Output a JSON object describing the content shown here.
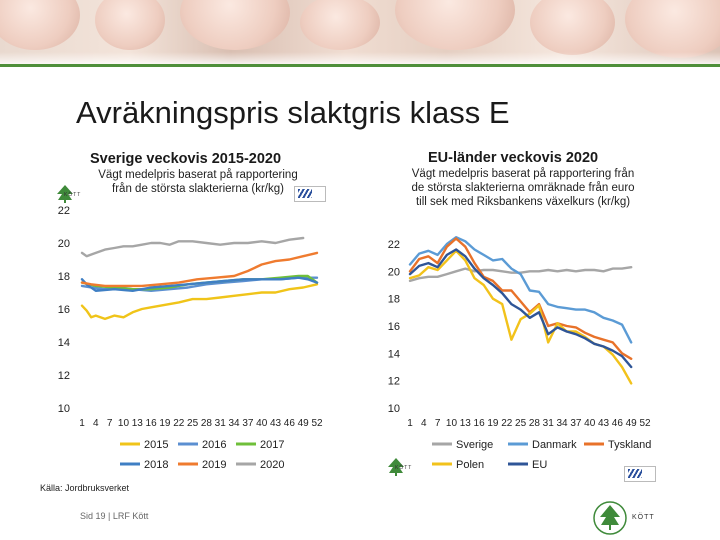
{
  "slide": {
    "title": "Avräkningspris slaktgris klass E",
    "source": "Källa: Jordbruksverket",
    "footer": "Sid 19 | LRF Kött",
    "logo_text": "KÖTT"
  },
  "colors": {
    "accent_green": "#4f8f3a",
    "2015": "#f0c419",
    "2016": "#5b8fd1",
    "2017": "#6fbf3a",
    "2018": "#3f7fc4",
    "2019": "#ef7b2f",
    "2020": "#a6a6a6",
    "Sverige": "#a6a6a6",
    "Danmark": "#5b9bd5",
    "Tyskland": "#e8722a",
    "Polen": "#f2c21b",
    "EU": "#2f5597"
  },
  "chart_data": [
    {
      "type": "line",
      "title": "Sverige veckovis 2015-2020",
      "subtitle": "Vägt medelpris baserat på rapportering från de största slakterierna (kr/kg)",
      "ylim": [
        10,
        22
      ],
      "yticks": [
        10,
        12,
        14,
        16,
        18,
        20,
        22
      ],
      "xticks": [
        1,
        4,
        7,
        10,
        13,
        16,
        19,
        22,
        25,
        28,
        31,
        34,
        37,
        40,
        43,
        46,
        49,
        52
      ],
      "grid": false,
      "legend_position": "bottom",
      "legend": [
        "2015",
        "2016",
        "2017",
        "2018",
        "2019",
        "2020"
      ],
      "series": [
        {
          "name": "2015",
          "x": [
            1,
            2,
            3,
            4,
            6,
            8,
            10,
            12,
            14,
            16,
            18,
            20,
            22,
            25,
            28,
            31,
            34,
            37,
            40,
            43,
            46,
            49,
            52
          ],
          "y": [
            16.2,
            15.9,
            15.5,
            15.6,
            15.4,
            15.6,
            15.5,
            15.8,
            16.0,
            16.1,
            16.2,
            16.3,
            16.4,
            16.6,
            16.6,
            16.7,
            16.8,
            16.9,
            17.0,
            17.0,
            17.2,
            17.3,
            17.5
          ]
        },
        {
          "name": "2016",
          "x": [
            1,
            3,
            6,
            9,
            12,
            16,
            20,
            24,
            28,
            32,
            36,
            40,
            44,
            48,
            52
          ],
          "y": [
            17.4,
            17.3,
            17.2,
            17.3,
            17.2,
            17.1,
            17.2,
            17.3,
            17.5,
            17.6,
            17.7,
            17.8,
            17.8,
            17.9,
            17.9
          ]
        },
        {
          "name": "2017",
          "x": [
            1,
            4,
            8,
            12,
            16,
            20,
            24,
            28,
            32,
            36,
            40,
            44,
            48,
            50,
            52
          ],
          "y": [
            17.6,
            17.4,
            17.3,
            17.2,
            17.2,
            17.3,
            17.5,
            17.6,
            17.7,
            17.8,
            17.8,
            17.9,
            18.0,
            18.0,
            17.6
          ]
        },
        {
          "name": "2018",
          "x": [
            1,
            2,
            4,
            8,
            12,
            16,
            20,
            24,
            28,
            32,
            36,
            40,
            44,
            48,
            50,
            52
          ],
          "y": [
            17.8,
            17.5,
            17.1,
            17.2,
            17.1,
            17.3,
            17.4,
            17.5,
            17.6,
            17.7,
            17.8,
            17.8,
            17.8,
            17.9,
            17.8,
            17.6
          ]
        },
        {
          "name": "2019",
          "x": [
            1,
            3,
            6,
            10,
            14,
            18,
            22,
            26,
            30,
            34,
            37,
            40,
            43,
            46,
            49,
            52
          ],
          "y": [
            17.6,
            17.5,
            17.4,
            17.4,
            17.4,
            17.5,
            17.6,
            17.8,
            17.9,
            18.0,
            18.3,
            18.7,
            18.9,
            19.0,
            19.2,
            19.4
          ]
        },
        {
          "name": "2020",
          "x": [
            1,
            2,
            4,
            6,
            8,
            10,
            12,
            14,
            16,
            18,
            20,
            22,
            25,
            28,
            31,
            34,
            37,
            40,
            43,
            46,
            49
          ],
          "y": [
            19.4,
            19.2,
            19.4,
            19.6,
            19.7,
            19.8,
            19.8,
            19.9,
            20.0,
            20.0,
            19.9,
            20.1,
            20.1,
            20.0,
            19.9,
            20.0,
            20.0,
            20.1,
            20.0,
            20.2,
            20.3
          ]
        }
      ]
    },
    {
      "type": "line",
      "title": "EU-länder veckovis 2020",
      "subtitle": "Vägt medelpris baserat på rapportering från de största slakterierna omräknade från euro till sek med Riksbankens växelkurs (kr/kg)",
      "ylim": [
        10,
        22
      ],
      "yticks": [
        10,
        12,
        14,
        16,
        18,
        20,
        22
      ],
      "xticks": [
        1,
        4,
        7,
        10,
        13,
        16,
        19,
        22,
        25,
        28,
        31,
        34,
        37,
        40,
        43,
        46,
        49,
        52
      ],
      "grid": false,
      "legend_position": "bottom",
      "legend": [
        "Sverige",
        "Danmark",
        "Tyskland",
        "Polen",
        "EU"
      ],
      "series": [
        {
          "name": "Sverige",
          "x": [
            1,
            3,
            5,
            7,
            9,
            11,
            13,
            15,
            17,
            19,
            21,
            23,
            25,
            27,
            29,
            31,
            33,
            35,
            37,
            39,
            41,
            43,
            45,
            47,
            49
          ],
          "y": [
            19.3,
            19.5,
            19.6,
            19.6,
            19.8,
            20.0,
            20.2,
            20.0,
            20.1,
            20.1,
            20.0,
            19.9,
            19.9,
            20.0,
            20.0,
            20.1,
            20.0,
            20.1,
            20.0,
            20.1,
            20.1,
            20.0,
            20.2,
            20.2,
            20.3
          ]
        },
        {
          "name": "Danmark",
          "x": [
            1,
            3,
            5,
            7,
            9,
            11,
            13,
            15,
            17,
            19,
            21,
            23,
            25,
            27,
            29,
            31,
            33,
            35,
            37,
            39,
            41,
            43,
            45,
            47,
            49
          ],
          "y": [
            20.5,
            21.3,
            21.5,
            21.2,
            22.0,
            22.5,
            22.2,
            21.6,
            21.2,
            20.8,
            20.9,
            20.2,
            19.8,
            18.6,
            18.5,
            17.6,
            17.4,
            17.3,
            17.2,
            17.2,
            17.0,
            16.6,
            16.4,
            16.1,
            14.8
          ]
        },
        {
          "name": "Tyskland",
          "x": [
            1,
            3,
            5,
            7,
            9,
            11,
            13,
            15,
            17,
            19,
            21,
            23,
            25,
            27,
            29,
            31,
            33,
            35,
            37,
            39,
            41,
            43,
            45,
            47,
            49
          ],
          "y": [
            20.0,
            20.9,
            21.1,
            20.6,
            21.8,
            22.4,
            21.8,
            20.6,
            19.6,
            19.3,
            18.6,
            18.6,
            17.8,
            17.0,
            17.6,
            16.0,
            16.2,
            16.0,
            15.9,
            15.5,
            15.2,
            15.0,
            14.8,
            14.0,
            13.6
          ]
        },
        {
          "name": "Polen",
          "x": [
            1,
            3,
            5,
            7,
            9,
            11,
            13,
            15,
            17,
            19,
            21,
            23,
            25,
            27,
            29,
            31,
            33,
            35,
            37,
            39,
            41,
            43,
            45,
            47,
            49
          ],
          "y": [
            19.5,
            19.7,
            20.3,
            20.1,
            20.8,
            21.5,
            20.8,
            19.5,
            19.0,
            18.0,
            17.6,
            15.0,
            16.5,
            16.9,
            17.5,
            14.8,
            16.2,
            15.6,
            15.6,
            15.2,
            14.7,
            14.5,
            13.9,
            13.0,
            11.8
          ]
        },
        {
          "name": "EU",
          "x": [
            1,
            3,
            5,
            7,
            9,
            11,
            13,
            15,
            17,
            19,
            21,
            23,
            25,
            27,
            29,
            31,
            33,
            35,
            37,
            39,
            41,
            43,
            45,
            47,
            49
          ],
          "y": [
            19.8,
            20.4,
            20.6,
            20.3,
            21.2,
            21.6,
            21.1,
            20.2,
            19.5,
            19.0,
            18.4,
            17.6,
            17.2,
            16.6,
            17.0,
            15.4,
            15.9,
            15.6,
            15.4,
            15.1,
            14.7,
            14.5,
            14.2,
            13.8,
            13.0
          ]
        }
      ]
    }
  ]
}
